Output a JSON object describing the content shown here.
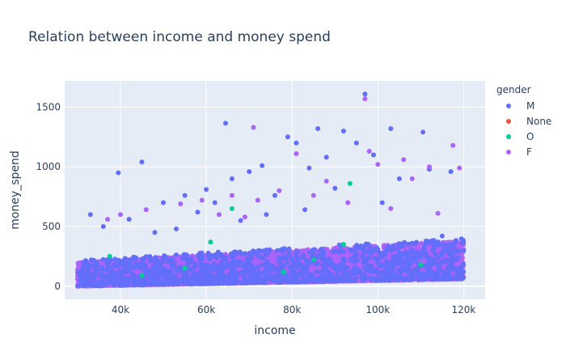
{
  "chart_data": {
    "type": "scatter",
    "title": "Relation between income and money spend",
    "xlabel": "income",
    "ylabel": "money_spend",
    "xlim": [
      27000,
      125000
    ],
    "ylim": [
      -110,
      1720
    ],
    "x_ticks": [
      40000,
      60000,
      80000,
      100000,
      120000
    ],
    "x_tick_labels": [
      "40k",
      "60k",
      "80k",
      "100k",
      "120k"
    ],
    "y_ticks": [
      0,
      500,
      1000,
      1500
    ],
    "y_tick_labels": [
      "0",
      "500",
      "1000",
      "1500"
    ],
    "grid": true,
    "legend_title": "gender",
    "legend_position": "right",
    "series": [
      {
        "name": "M",
        "color": "#636efa",
        "points": [
          [
            97000,
            1610
          ],
          [
            64500,
            1365
          ],
          [
            110500,
            1290
          ],
          [
            103000,
            1320
          ],
          [
            86000,
            1320
          ],
          [
            45000,
            1040
          ],
          [
            39500,
            950
          ],
          [
            79000,
            1250
          ],
          [
            81000,
            1200
          ],
          [
            92000,
            1300
          ],
          [
            73000,
            1010
          ],
          [
            88000,
            1080
          ],
          [
            95000,
            1200
          ],
          [
            60000,
            810
          ],
          [
            55000,
            760
          ],
          [
            50000,
            700
          ],
          [
            66000,
            900
          ],
          [
            70000,
            960
          ],
          [
            84000,
            990
          ],
          [
            99000,
            1100
          ],
          [
            105000,
            900
          ],
          [
            112000,
            980
          ],
          [
            117000,
            960
          ],
          [
            42000,
            560
          ],
          [
            36000,
            500
          ],
          [
            58000,
            620
          ],
          [
            62000,
            700
          ],
          [
            76000,
            760
          ],
          [
            90000,
            820
          ],
          [
            101000,
            700
          ],
          [
            48000,
            450
          ],
          [
            53000,
            480
          ],
          [
            68000,
            550
          ],
          [
            74000,
            600
          ],
          [
            83000,
            640
          ],
          [
            33000,
            600
          ],
          [
            115000,
            420
          ],
          [
            108000,
            360
          ],
          [
            95000,
            330
          ],
          [
            91000,
            345
          ]
        ]
      },
      {
        "name": "None",
        "color": "#ef553b",
        "points": []
      },
      {
        "name": "O",
        "color": "#00cc96",
        "points": [
          [
            93500,
            860
          ],
          [
            92000,
            350
          ],
          [
            61000,
            370
          ],
          [
            37500,
            250
          ],
          [
            66000,
            650
          ],
          [
            85000,
            220
          ],
          [
            55000,
            150
          ],
          [
            110000,
            180
          ],
          [
            78000,
            120
          ],
          [
            45000,
            90
          ]
        ]
      },
      {
        "name": "F",
        "color": "#ab63fa",
        "points": [
          [
            97000,
            1570
          ],
          [
            71000,
            1330
          ],
          [
            117500,
            1180
          ],
          [
            98000,
            1130
          ],
          [
            81000,
            1110
          ],
          [
            100000,
            1020
          ],
          [
            106000,
            1060
          ],
          [
            112000,
            1000
          ],
          [
            119000,
            990
          ],
          [
            108000,
            900
          ],
          [
            88000,
            880
          ],
          [
            77000,
            800
          ],
          [
            85000,
            760
          ],
          [
            72000,
            720
          ],
          [
            66000,
            760
          ],
          [
            59000,
            720
          ],
          [
            54000,
            690
          ],
          [
            46000,
            640
          ],
          [
            40000,
            600
          ],
          [
            37000,
            560
          ],
          [
            103000,
            650
          ],
          [
            114000,
            610
          ],
          [
            93000,
            700
          ],
          [
            63000,
            600
          ],
          [
            69000,
            580
          ]
        ]
      }
    ],
    "dense_bands": [
      {
        "series": "F",
        "x_min": 30000,
        "x_max": 120000,
        "y_low_start": 0,
        "y_low_end": 60,
        "y_high_start": 200,
        "y_high_end": 380,
        "count": 6500
      },
      {
        "series": "M",
        "x_min": 30000,
        "x_max": 120000,
        "y_low_start": 0,
        "y_low_end": 60,
        "y_high_start": 220,
        "y_high_end": 400,
        "count": 1400
      }
    ]
  }
}
